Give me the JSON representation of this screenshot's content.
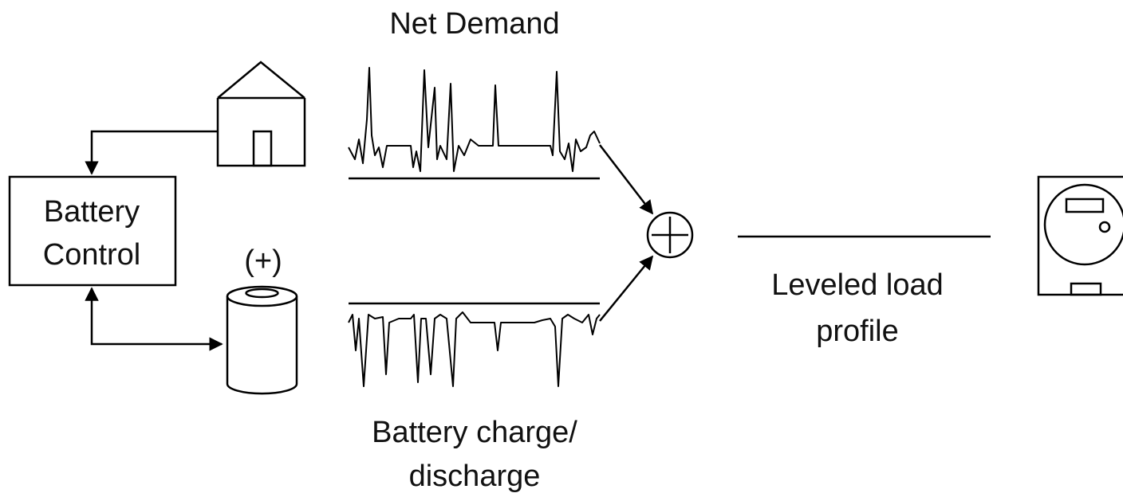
{
  "labels": {
    "net_demand": "Net Demand",
    "battery_control": [
      "Battery",
      "Control"
    ],
    "battery_terminal": "(+)",
    "battery_charge": [
      "Battery charge/",
      "discharge"
    ],
    "leveled_load": [
      "Leveled load",
      "profile"
    ]
  }
}
